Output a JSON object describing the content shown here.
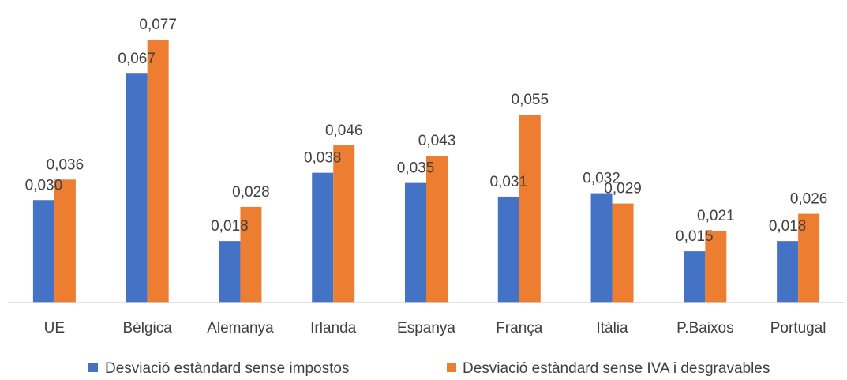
{
  "chart_data": {
    "type": "bar",
    "categories": [
      "UE",
      "Bèlgica",
      "Alemanya",
      "Irlanda",
      "Espanya",
      "França",
      "Itàlia",
      "P.Baixos",
      "Portugal"
    ],
    "series": [
      {
        "name": "Desviació estàndard sense impostos",
        "color": "#4472C4",
        "values": [
          0.03,
          0.067,
          0.018,
          0.038,
          0.035,
          0.031,
          0.032,
          0.015,
          0.018
        ],
        "labels": [
          "0,030",
          "0,067",
          "0,018",
          "0,038",
          "0,035",
          "0,031",
          "0,032",
          "0,015",
          "0,018"
        ]
      },
      {
        "name": "Desviació estàndard sense IVA i desgravables",
        "color": "#ED7D31",
        "values": [
          0.036,
          0.077,
          0.028,
          0.046,
          0.043,
          0.055,
          0.029,
          0.021,
          0.026
        ],
        "labels": [
          "0,036",
          "0,077",
          "0,028",
          "0,046",
          "0,043",
          "0,055",
          "0,029",
          "0,021",
          "0,026"
        ]
      }
    ],
    "ylim": [
      0,
      0.08
    ],
    "grid": false,
    "legend_position": "bottom",
    "axis_color": "#D9D9D9",
    "text_color": "#404040"
  }
}
